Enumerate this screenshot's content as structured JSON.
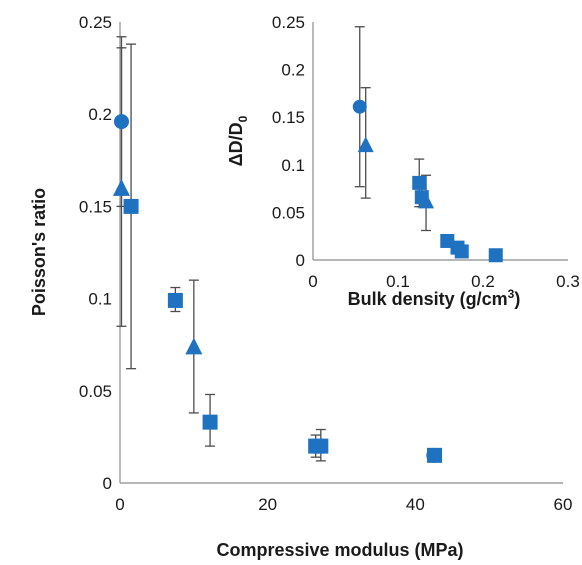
{
  "chart_data": [
    {
      "type": "scatter",
      "title": "",
      "xlabel": "Compressive modulus (MPa)",
      "ylabel": "Poisson's ratio",
      "xlim": [
        0,
        60
      ],
      "ylim": [
        0,
        0.25
      ],
      "xticks": [
        "0",
        "20",
        "40",
        "60"
      ],
      "yticks": [
        "0",
        "0.05",
        "0.1",
        "0.15",
        "0.2",
        "0.25"
      ],
      "grid": false,
      "legend": "none",
      "series": [
        {
          "marker": "circle",
          "color": "#1f72c0",
          "points": [
            {
              "x": 0.2,
              "y": 0.196,
              "err_low": 0.15,
              "err_high": 0.242
            },
            {
              "x": 42.5,
              "y": 0.015,
              "err_low": 0.014,
              "err_high": 0.017
            }
          ]
        },
        {
          "marker": "triangle",
          "color": "#1f72c0",
          "points": [
            {
              "x": 0.2,
              "y": 0.16,
              "err_low": 0.085,
              "err_high": 0.236
            },
            {
              "x": 10.0,
              "y": 0.074,
              "err_low": 0.038,
              "err_high": 0.11
            }
          ]
        },
        {
          "marker": "square",
          "color": "#1f72c0",
          "points": [
            {
              "x": 1.5,
              "y": 0.15,
              "err_low": 0.062,
              "err_high": 0.238
            },
            {
              "x": 7.5,
              "y": 0.099,
              "err_low": 0.093,
              "err_high": 0.106
            },
            {
              "x": 12.2,
              "y": 0.033,
              "err_low": 0.02,
              "err_high": 0.048
            },
            {
              "x": 26.5,
              "y": 0.02,
              "err_low": 0.014,
              "err_high": 0.026
            },
            {
              "x": 27.2,
              "y": 0.02,
              "err_low": 0.012,
              "err_high": 0.029
            },
            {
              "x": 42.6,
              "y": 0.015,
              "err_low": 0.013,
              "err_high": 0.017
            }
          ]
        }
      ]
    },
    {
      "type": "scatter",
      "title": "",
      "xlabel": "Bulk density (g/cm³)",
      "ylabel": "ΔD/D₀",
      "xlim": [
        0,
        0.3
      ],
      "ylim": [
        0,
        0.25
      ],
      "xticks": [
        "0",
        "0.1",
        "0.2",
        "0.3"
      ],
      "yticks": [
        "0",
        "0.05",
        "0.1",
        "0.15",
        "0.2",
        "0.25"
      ],
      "grid": false,
      "legend": "none",
      "series": [
        {
          "marker": "circle",
          "color": "#1f72c0",
          "points": [
            {
              "x": 0.055,
              "y": 0.161,
              "err_low": 0.077,
              "err_high": 0.245
            }
          ]
        },
        {
          "marker": "triangle",
          "color": "#1f72c0",
          "points": [
            {
              "x": 0.062,
              "y": 0.121,
              "err_low": 0.065,
              "err_high": 0.181
            },
            {
              "x": 0.133,
              "y": 0.062,
              "err_low": 0.031,
              "err_high": 0.089
            }
          ]
        },
        {
          "marker": "square",
          "color": "#1f72c0",
          "points": [
            {
              "x": 0.125,
              "y": 0.081,
              "err_low": 0.056,
              "err_high": 0.106
            },
            {
              "x": 0.128,
              "y": 0.066,
              "err_low": 0.056,
              "err_high": 0.075
            },
            {
              "x": 0.158,
              "y": 0.02,
              "err_low": 0.016,
              "err_high": 0.024
            },
            {
              "x": 0.17,
              "y": 0.013,
              "err_low": 0.011,
              "err_high": 0.015
            },
            {
              "x": 0.175,
              "y": 0.009,
              "err_low": 0.007,
              "err_high": 0.011
            },
            {
              "x": 0.215,
              "y": 0.005,
              "err_low": 0.004,
              "err_high": 0.006
            }
          ]
        }
      ]
    }
  ]
}
